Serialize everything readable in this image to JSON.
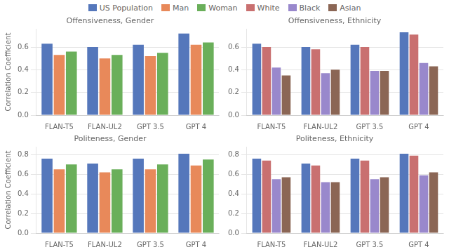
{
  "chart_data": [
    {
      "type": "bar",
      "title": "Offensiveness, Gender",
      "ylabel": "Correlation Coefficient",
      "categories": [
        "FLAN-T5",
        "FLAN-UL2",
        "GPT 3.5",
        "GPT 4"
      ],
      "series": [
        {
          "name": "US Population",
          "color": "#5577BB",
          "values": [
            0.63,
            0.6,
            0.62,
            0.72
          ]
        },
        {
          "name": "Man",
          "color": "#E8895A",
          "values": [
            0.53,
            0.5,
            0.52,
            0.62
          ]
        },
        {
          "name": "Woman",
          "color": "#6AAF5A",
          "values": [
            0.56,
            0.53,
            0.55,
            0.64
          ]
        }
      ],
      "ylim": [
        0.0,
        0.76
      ],
      "yticks": [
        {
          "value": 0.0,
          "label": "0.0"
        },
        0.2,
        0.4,
        0.6
      ],
      "grid": "y",
      "legend": "top"
    },
    {
      "type": "bar",
      "title": "Offensiveness, Ethnicity",
      "categories": [
        "FLAN-T5",
        "FLAN-UL2",
        "GPT 3.5",
        "GPT 4"
      ],
      "series": [
        {
          "name": "US Population",
          "color": "#5577BB",
          "values": [
            0.63,
            0.6,
            0.62,
            0.73
          ]
        },
        {
          "name": "White",
          "color": "#C97070",
          "values": [
            0.6,
            0.58,
            0.6,
            0.71
          ]
        },
        {
          "name": "Black",
          "color": "#9988CC",
          "values": [
            0.42,
            0.37,
            0.39,
            0.46
          ]
        },
        {
          "name": "Asian",
          "color": "#8B6655",
          "values": [
            0.35,
            0.4,
            0.39,
            0.43
          ]
        }
      ],
      "ylim": [
        0.0,
        0.76
      ],
      "yticks": [
        {
          "value": 0.0,
          "label": "0.0"
        },
        0.2,
        0.4,
        0.6
      ],
      "grid": "y",
      "legend": "top"
    },
    {
      "type": "bar",
      "title": "Politeness, Gender",
      "ylabel": "Correlation Coefficient",
      "categories": [
        "FLAN-T5",
        "FLAN-UL2",
        "GPT 3.5",
        "GPT 4"
      ],
      "series": [
        {
          "name": "US Population",
          "color": "#5577BB",
          "values": [
            0.76,
            0.71,
            0.76,
            0.81
          ]
        },
        {
          "name": "Man",
          "color": "#E8895A",
          "values": [
            0.65,
            0.62,
            0.65,
            0.69
          ]
        },
        {
          "name": "Woman",
          "color": "#6AAF5A",
          "values": [
            0.7,
            0.65,
            0.7,
            0.75
          ]
        }
      ],
      "ylim": [
        0.0,
        0.88
      ],
      "yticks": [
        {
          "value": 0.0,
          "label": "0.0"
        },
        0.2,
        0.4,
        0.6,
        0.8
      ],
      "grid": "y",
      "legend": "top"
    },
    {
      "type": "bar",
      "title": "Politeness, Ethnicity",
      "categories": [
        "FLAN-T5",
        "FLAN-UL2",
        "GPT 3.5",
        "GPT 4"
      ],
      "series": [
        {
          "name": "US Population",
          "color": "#5577BB",
          "values": [
            0.76,
            0.71,
            0.76,
            0.81
          ]
        },
        {
          "name": "White",
          "color": "#C97070",
          "values": [
            0.74,
            0.69,
            0.74,
            0.79
          ]
        },
        {
          "name": "Black",
          "color": "#9988CC",
          "values": [
            0.55,
            0.52,
            0.55,
            0.59
          ]
        },
        {
          "name": "Asian",
          "color": "#8B6655",
          "values": [
            0.57,
            0.52,
            0.57,
            0.62
          ]
        }
      ],
      "ylim": [
        0.0,
        0.88
      ],
      "yticks": [
        {
          "value": 0.0,
          "label": "0.0"
        },
        0.2,
        0.4,
        0.6,
        0.8
      ],
      "grid": "y",
      "legend": "top"
    }
  ]
}
